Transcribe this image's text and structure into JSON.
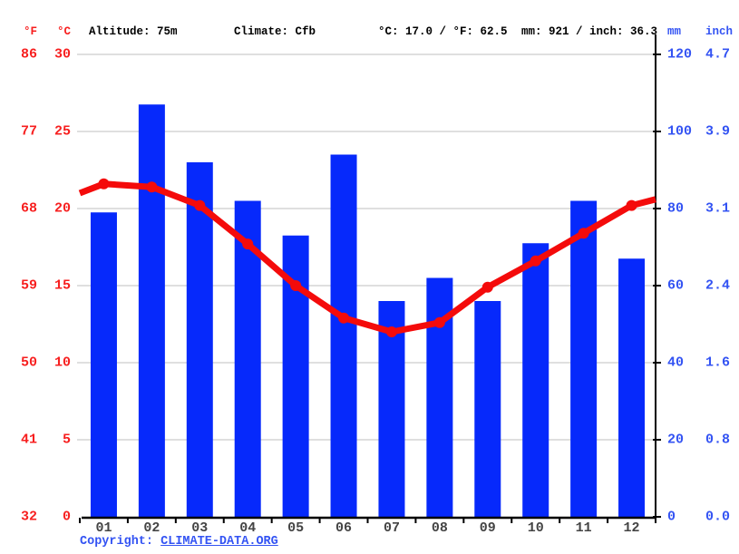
{
  "header": {
    "f_unit": "°F",
    "c_unit": "°C",
    "altitude": "Altitude: 75m",
    "climate": "Climate: Cfb",
    "temp_summary": "°C: 17.0 / °F: 62.5",
    "precip_summary": "mm: 921 / inch: 36.3",
    "mm_unit": "mm",
    "inch_unit": "inch"
  },
  "axes": {
    "fahrenheit_ticks": [
      "86",
      "77",
      "68",
      "59",
      "50",
      "41",
      "32"
    ],
    "celsius_ticks": [
      "30",
      "25",
      "20",
      "15",
      "10",
      "5",
      "0"
    ],
    "mm_ticks": [
      "120",
      "100",
      "80",
      "60",
      "40",
      "20",
      "0"
    ],
    "inch_ticks": [
      "4.7",
      "3.9",
      "3.1",
      "2.4",
      "1.6",
      "0.8",
      "0.0"
    ]
  },
  "chart_data": {
    "type": "bar+line",
    "categories": [
      "01",
      "02",
      "03",
      "04",
      "05",
      "06",
      "07",
      "08",
      "09",
      "10",
      "11",
      "12"
    ],
    "series": [
      {
        "name": "precipitation_mm",
        "type": "bar",
        "values": [
          79,
          107,
          92,
          82,
          73,
          94,
          56,
          62,
          56,
          71,
          82,
          67
        ]
      },
      {
        "name": "temperature_c",
        "type": "line",
        "values": [
          21.6,
          21.4,
          20.2,
          17.7,
          15.0,
          12.9,
          12.0,
          12.6,
          14.9,
          16.6,
          18.4,
          20.2
        ],
        "edge_values_c": [
          21.0,
          20.6
        ]
      }
    ],
    "ylim_temp_c": [
      0,
      30
    ],
    "ylim_precip_mm": [
      0,
      120
    ],
    "grid": true,
    "legend_position": "none",
    "annotations": {
      "annual_mean_temp": "°C: 17.0 / °F: 62.5",
      "annual_precip": "mm: 921 / inch: 36.3"
    }
  },
  "footer": {
    "copyright_prefix": "Copyright: ",
    "copyright_link": "CLIMATE-DATA.ORG"
  },
  "colors": {
    "bar_blue": "#0629fb",
    "line_red": "#f40b0b",
    "axis_text_red": "#f71f1f",
    "axis_text_blue": "#3353f3",
    "gridline_gray": "#cccccc",
    "axis_black": "#000000",
    "month_text": "#444444"
  }
}
